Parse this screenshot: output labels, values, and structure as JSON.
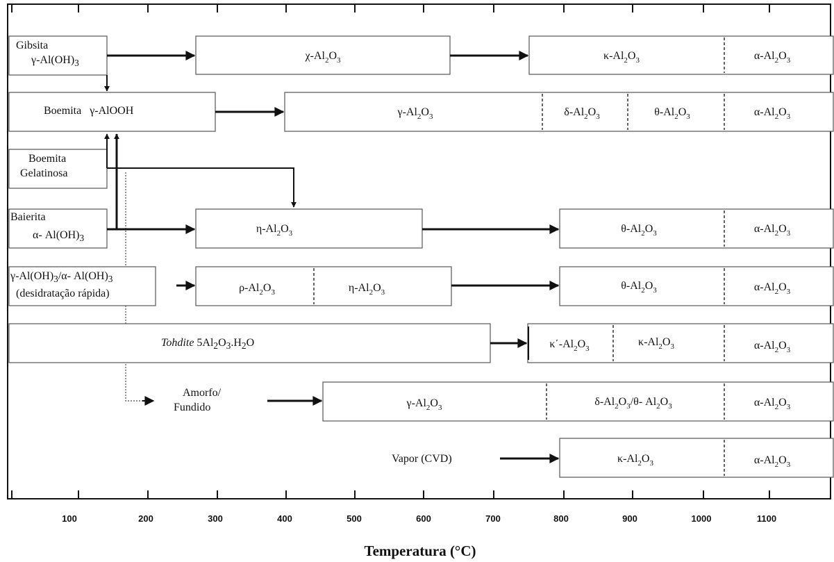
{
  "diagram": {
    "x_axis": {
      "title": "Temperatura (°C)",
      "ticks": [
        "100",
        "200",
        "300",
        "400",
        "500",
        "600",
        "700",
        "800",
        "900",
        "1000",
        "1100"
      ]
    },
    "sources": {
      "gibsita": [
        "Gibsita",
        "γ-Al(OH)<sub>3</sub>"
      ],
      "boemita": "Boemita   γ-AlOOH",
      "boemita_gel": [
        "Boemita",
        "Gelatinosa"
      ],
      "baierita": [
        "Baierita",
        "α- Al(OH)<sub>3</sub>"
      ],
      "desidratacao": [
        "γ-Al(OH)<sub>3</sub>/α- Al(OH)<sub>3</sub>",
        "(desidratação rápida)"
      ],
      "tohdite": "<i>Tohdite</i> 5Al<sub>2</sub>O<sub>3</sub>.H<sub>2</sub>O",
      "amorfo": [
        "Amorfo/",
        "Fundido"
      ],
      "vapor": "Vapor (CVD)"
    },
    "phases": {
      "chi": "χ-Al<sub>2</sub>O<sub>3</sub>",
      "kappa": "κ-Al<sub>2</sub>O<sub>3</sub>",
      "alpha": "α-Al<sub>2</sub>O<sub>3</sub>",
      "gamma": "γ-Al<sub>2</sub>O<sub>3</sub>",
      "delta": "δ-Al<sub>2</sub>O<sub>3</sub>",
      "theta": "θ-Al<sub>2</sub>O<sub>3</sub>",
      "eta": "η-Al<sub>2</sub>O<sub>3</sub>",
      "rho": "ρ-Al<sub>2</sub>O<sub>3</sub>",
      "kappa_prime": "κ΄-Al<sub>2</sub>O<sub>3</sub>",
      "delta_theta": "δ-Al<sub>2</sub>O<sub>3</sub>/θ- Al<sub>2</sub>O<sub>3</sub>"
    },
    "colors": {
      "line": "#111111",
      "box_border": "#555555",
      "background": "#ffffff"
    }
  }
}
